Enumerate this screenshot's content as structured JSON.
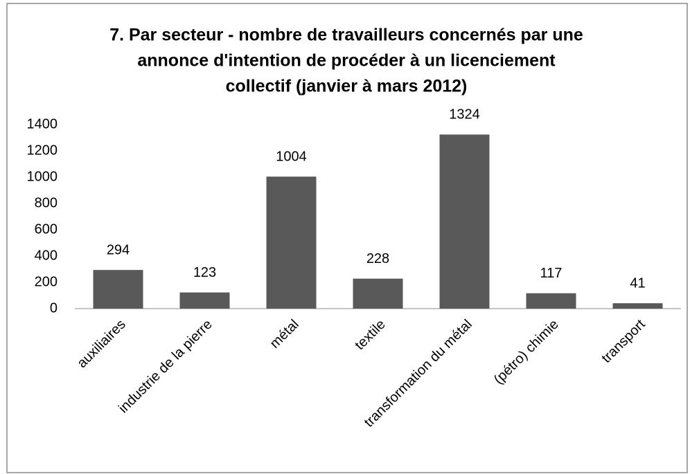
{
  "chart_data": {
    "type": "bar",
    "title": [
      "7. Par secteur - nombre de travailleurs concernés par une",
      "annonce d'intention de procéder à un licenciement",
      "collectif (janvier à mars 2012)"
    ],
    "categories": [
      "auxiliaires",
      "industrie de la pierre",
      "métal",
      "textile",
      "transformation du métal",
      "(pétro) chimie",
      "transport"
    ],
    "values": [
      294,
      123,
      1004,
      228,
      1324,
      117,
      41
    ],
    "color": "#595959",
    "ylim": [
      0,
      1400
    ],
    "yticks": [
      0,
      200,
      400,
      600,
      800,
      1000,
      1200,
      1400
    ],
    "grid": false
  }
}
